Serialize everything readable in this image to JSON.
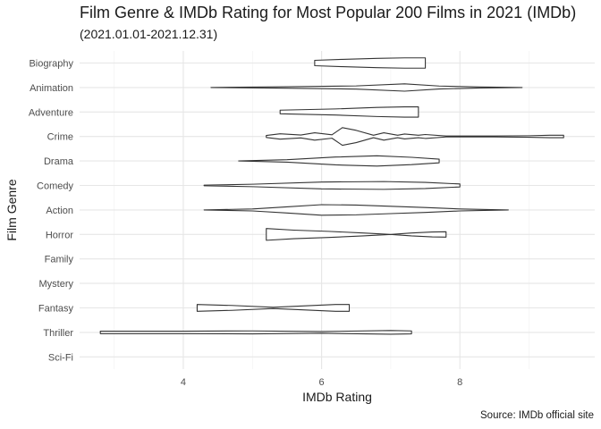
{
  "chart_data": {
    "type": "violin",
    "title": "Film Genre & IMDb Rating for Most Popular 200 Films in 2021 (IMDb)",
    "subtitle": "(2021.01.01-2021.12.31)",
    "caption": "Source: IMDb official site",
    "xlabel": "IMDb Rating",
    "ylabel": "Film Genre",
    "xlim": [
      2.5,
      9.95
    ],
    "x_ticks": [
      4,
      6,
      8
    ],
    "grid": true,
    "categories": [
      "Biography",
      "Animation",
      "Adventure",
      "Crime",
      "Drama",
      "Comedy",
      "Action",
      "Horror",
      "Family",
      "Mystery",
      "Fantasy",
      "Thriller",
      "Sci-Fi"
    ],
    "series": [
      {
        "genre": "Biography",
        "density": [
          [
            5.9,
            0.22
          ],
          [
            6.3,
            0.3
          ],
          [
            6.8,
            0.38
          ],
          [
            7.2,
            0.42
          ],
          [
            7.5,
            0.42
          ]
        ]
      },
      {
        "genre": "Animation",
        "density": [
          [
            4.4,
            0.0
          ],
          [
            5.5,
            0.06
          ],
          [
            6.5,
            0.13
          ],
          [
            7.2,
            0.3
          ],
          [
            7.7,
            0.12
          ],
          [
            8.3,
            0.04
          ],
          [
            8.9,
            0.0
          ]
        ]
      },
      {
        "genre": "Adventure",
        "density": [
          [
            5.4,
            0.15
          ],
          [
            6.2,
            0.25
          ],
          [
            6.8,
            0.37
          ],
          [
            7.2,
            0.42
          ],
          [
            7.4,
            0.42
          ]
        ]
      },
      {
        "genre": "Crime",
        "density": [
          [
            5.2,
            0.08
          ],
          [
            5.4,
            0.22
          ],
          [
            5.7,
            0.12
          ],
          [
            5.9,
            0.3
          ],
          [
            6.15,
            0.14
          ],
          [
            6.3,
            0.72
          ],
          [
            6.5,
            0.5
          ],
          [
            6.75,
            0.1
          ],
          [
            6.9,
            0.3
          ],
          [
            7.1,
            0.1
          ],
          [
            7.2,
            0.2
          ],
          [
            7.4,
            0.1
          ],
          [
            7.5,
            0.16
          ],
          [
            7.8,
            0.04
          ],
          [
            8.5,
            0.04
          ],
          [
            9.0,
            0.06
          ],
          [
            9.3,
            0.1
          ],
          [
            9.5,
            0.1
          ]
        ]
      },
      {
        "genre": "Drama",
        "density": [
          [
            4.8,
            0.0
          ],
          [
            5.5,
            0.1
          ],
          [
            6.2,
            0.32
          ],
          [
            6.8,
            0.42
          ],
          [
            7.3,
            0.3
          ],
          [
            7.7,
            0.15
          ]
        ]
      },
      {
        "genre": "Comedy",
        "density": [
          [
            4.3,
            0.02
          ],
          [
            5.0,
            0.1
          ],
          [
            6.0,
            0.28
          ],
          [
            6.9,
            0.32
          ],
          [
            7.5,
            0.25
          ],
          [
            8.0,
            0.12
          ]
        ]
      },
      {
        "genre": "Action",
        "density": [
          [
            4.3,
            0.0
          ],
          [
            5.0,
            0.08
          ],
          [
            5.5,
            0.25
          ],
          [
            6.0,
            0.43
          ],
          [
            6.5,
            0.4
          ],
          [
            7.0,
            0.3
          ],
          [
            7.5,
            0.2
          ],
          [
            8.0,
            0.08
          ],
          [
            8.7,
            0.0
          ]
        ]
      },
      {
        "genre": "Horror",
        "density": [
          [
            5.2,
            0.48
          ],
          [
            5.6,
            0.35
          ],
          [
            6.1,
            0.25
          ],
          [
            6.6,
            0.12
          ],
          [
            7.0,
            0.0
          ],
          [
            7.3,
            0.12
          ],
          [
            7.6,
            0.2
          ],
          [
            7.8,
            0.22
          ]
        ]
      },
      {
        "genre": "Family",
        "density": []
      },
      {
        "genre": "Mystery",
        "density": []
      },
      {
        "genre": "Fantasy",
        "density": [
          [
            4.2,
            0.28
          ],
          [
            4.7,
            0.2
          ],
          [
            5.3,
            0.05
          ],
          [
            5.8,
            0.18
          ],
          [
            6.2,
            0.28
          ],
          [
            6.4,
            0.28
          ]
        ]
      },
      {
        "genre": "Thriller",
        "density": [
          [
            2.8,
            0.1
          ],
          [
            4.0,
            0.1
          ],
          [
            5.0,
            0.12
          ],
          [
            6.0,
            0.07
          ],
          [
            7.0,
            0.15
          ],
          [
            7.3,
            0.12
          ]
        ]
      },
      {
        "genre": "Sci-Fi",
        "density": []
      }
    ]
  }
}
